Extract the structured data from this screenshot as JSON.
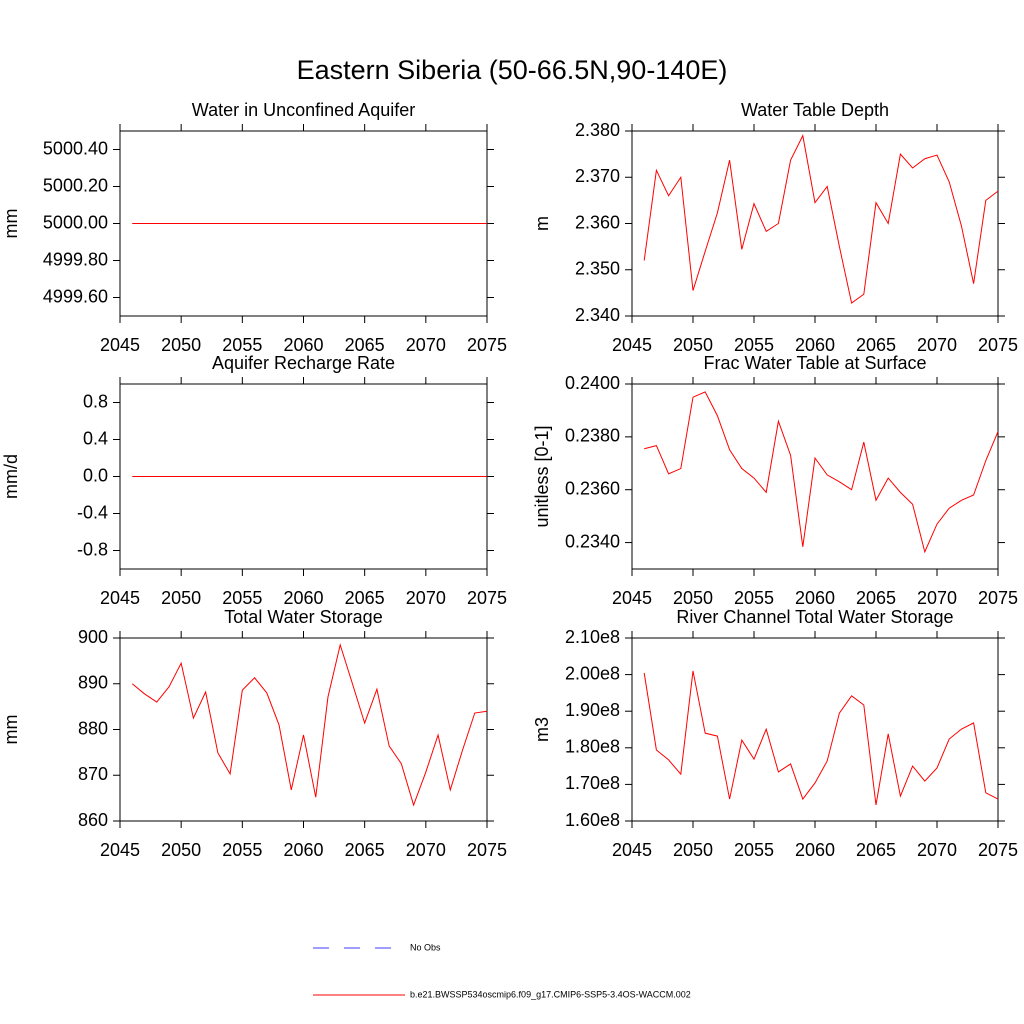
{
  "title": "Eastern Siberia (50-66.5N,90-140E)",
  "legend": [
    {
      "name": "No Obs",
      "color": "#3c3cff",
      "dash": true
    },
    {
      "name": "b.e21.BWSSP534oscmip6.f09_g17.CMIP6-SSP5-3.4OS-WACCM.002",
      "color": "#ff0000",
      "dash": false
    }
  ],
  "chart_data": [
    {
      "type": "line",
      "title": "Water in Unconfined Aquifer",
      "ylabel": "mm",
      "x": [
        2046,
        2047,
        2048,
        2049,
        2050,
        2051,
        2052,
        2053,
        2054,
        2055,
        2056,
        2057,
        2058,
        2059,
        2060,
        2061,
        2062,
        2063,
        2064,
        2065,
        2066,
        2067,
        2068,
        2069,
        2070,
        2071,
        2072,
        2073,
        2074,
        2075
      ],
      "series": [
        {
          "color": "#ff0000",
          "values": [
            5000,
            5000,
            5000,
            5000,
            5000,
            5000,
            5000,
            5000,
            5000,
            5000,
            5000,
            5000,
            5000,
            5000,
            5000,
            5000,
            5000,
            5000,
            5000,
            5000,
            5000,
            5000,
            5000,
            5000,
            5000,
            5000,
            5000,
            5000,
            5000,
            5000
          ]
        }
      ],
      "xlim": [
        2045,
        2075
      ],
      "xticks": [
        2045,
        2050,
        2055,
        2060,
        2065,
        2070,
        2075
      ],
      "ylim": [
        4999.5,
        5000.5
      ],
      "yticks": [
        {
          "value": 4999.6,
          "label": "4999.60"
        },
        {
          "value": 4999.8,
          "label": "4999.80"
        },
        {
          "value": 5000,
          "label": "5000.00"
        },
        {
          "value": 5000.2,
          "label": "5000.20"
        },
        {
          "value": 5000.4,
          "label": "5000.40"
        }
      ]
    },
    {
      "type": "line",
      "title": "Water Table Depth",
      "ylabel": "m",
      "x": [
        2046,
        2047,
        2048,
        2049,
        2050,
        2051,
        2052,
        2053,
        2054,
        2055,
        2056,
        2057,
        2058,
        2059,
        2060,
        2061,
        2062,
        2063,
        2064,
        2065,
        2066,
        2067,
        2068,
        2069,
        2070,
        2071,
        2072,
        2073,
        2074,
        2075
      ],
      "series": [
        {
          "color": "#ff0000",
          "values": [
            2.352,
            2.3715,
            2.366,
            2.37,
            2.3455,
            2.354,
            2.3623,
            2.3737,
            2.3544,
            2.3643,
            2.3583,
            2.36,
            2.3737,
            2.379,
            2.3645,
            2.368,
            2.355,
            2.3428,
            2.3447,
            2.3645,
            2.36,
            2.375,
            2.372,
            2.374,
            2.3748,
            2.369,
            2.3595,
            2.347,
            2.365,
            2.367
          ]
        }
      ],
      "xlim": [
        2045,
        2075
      ],
      "xticks": [
        2045,
        2050,
        2055,
        2060,
        2065,
        2070,
        2075
      ],
      "ylim": [
        2.34,
        2.38
      ],
      "yticks": [
        {
          "value": 2.34,
          "label": "2.340"
        },
        {
          "value": 2.35,
          "label": "2.350"
        },
        {
          "value": 2.36,
          "label": "2.360"
        },
        {
          "value": 2.37,
          "label": "2.370"
        },
        {
          "value": 2.38,
          "label": "2.380"
        }
      ]
    },
    {
      "type": "line",
      "title": "Aquifer Recharge Rate",
      "ylabel": "mm/d",
      "x": [
        2046,
        2047,
        2048,
        2049,
        2050,
        2051,
        2052,
        2053,
        2054,
        2055,
        2056,
        2057,
        2058,
        2059,
        2060,
        2061,
        2062,
        2063,
        2064,
        2065,
        2066,
        2067,
        2068,
        2069,
        2070,
        2071,
        2072,
        2073,
        2074,
        2075
      ],
      "series": [
        {
          "color": "#ff0000",
          "values": [
            0,
            0,
            0,
            0,
            0,
            0,
            0,
            0,
            0,
            0,
            0,
            0,
            0,
            0,
            0,
            0,
            0,
            0,
            0,
            0,
            0,
            0,
            0,
            0,
            0,
            0,
            0,
            0,
            0,
            0
          ]
        }
      ],
      "xlim": [
        2045,
        2075
      ],
      "xticks": [
        2045,
        2050,
        2055,
        2060,
        2065,
        2070,
        2075
      ],
      "ylim": [
        -1,
        1
      ],
      "yticks": [
        -0.8,
        -0.4,
        {
          "value": 0,
          "label": "0.0"
        },
        0.4,
        0.8
      ]
    },
    {
      "type": "line",
      "title": "Frac Water Table at Surface",
      "ylabel": "unitless [0-1]",
      "x": [
        2046,
        2047,
        2048,
        2049,
        2050,
        2051,
        2052,
        2053,
        2054,
        2055,
        2056,
        2057,
        2058,
        2059,
        2060,
        2061,
        2062,
        2063,
        2064,
        2065,
        2066,
        2067,
        2068,
        2069,
        2070,
        2071,
        2072,
        2073,
        2074,
        2075
      ],
      "series": [
        {
          "color": "#ff0000",
          "values": [
            0.23755,
            0.23767,
            0.2366,
            0.2368,
            0.2395,
            0.2397,
            0.2388,
            0.23751,
            0.2368,
            0.23644,
            0.2359,
            0.23859,
            0.2373,
            0.23384,
            0.2372,
            0.23656,
            0.2363,
            0.236,
            0.2378,
            0.2356,
            0.23644,
            0.2359,
            0.23545,
            0.23365,
            0.2347,
            0.2353,
            0.2356,
            0.2358,
            0.2371,
            0.2382
          ]
        }
      ],
      "xlim": [
        2045,
        2075
      ],
      "xticks": [
        2045,
        2050,
        2055,
        2060,
        2065,
        2070,
        2075
      ],
      "ylim": [
        0.233,
        0.24
      ],
      "yticks": [
        {
          "value": 0.234,
          "label": "0.2340"
        },
        {
          "value": 0.236,
          "label": "0.2360"
        },
        {
          "value": 0.238,
          "label": "0.2380"
        },
        {
          "value": 0.24,
          "label": "0.2400"
        }
      ]
    },
    {
      "type": "line",
      "title": "Total Water Storage",
      "ylabel": "mm",
      "x": [
        2046,
        2047,
        2048,
        2049,
        2050,
        2051,
        2052,
        2053,
        2054,
        2055,
        2056,
        2057,
        2058,
        2059,
        2060,
        2061,
        2062,
        2063,
        2064,
        2065,
        2066,
        2067,
        2068,
        2069,
        2070,
        2071,
        2072,
        2073,
        2074,
        2075
      ],
      "series": [
        {
          "color": "#ff0000",
          "values": [
            890,
            887.8,
            886,
            889.3,
            894.5,
            882.5,
            888.2,
            874.9,
            870.3,
            888.6,
            891.3,
            888,
            881,
            866.8,
            878.8,
            865.2,
            887.1,
            898.5,
            890,
            881.4,
            888.8,
            876.4,
            872.5,
            863.5,
            870.7,
            878.8,
            866.8,
            875.5,
            883.6,
            884
          ]
        }
      ],
      "xlim": [
        2045,
        2075
      ],
      "xticks": [
        2045,
        2050,
        2055,
        2060,
        2065,
        2070,
        2075
      ],
      "ylim": [
        860,
        900
      ],
      "yticks": [
        860,
        870,
        880,
        890,
        900
      ]
    },
    {
      "type": "line",
      "title": "River Channel Total Water Storage",
      "ylabel": "m3",
      "x": [
        2046,
        2047,
        2048,
        2049,
        2050,
        2051,
        2052,
        2053,
        2054,
        2055,
        2056,
        2057,
        2058,
        2059,
        2060,
        2061,
        2062,
        2063,
        2064,
        2065,
        2066,
        2067,
        2068,
        2069,
        2070,
        2071,
        2072,
        2073,
        2074,
        2075
      ],
      "series": [
        {
          "color": "#ff0000",
          "values": [
            200440000,
            179400000,
            176700000,
            172800000,
            201000000,
            184000000,
            183200000,
            166000000,
            182100000,
            176900000,
            185100000,
            173400000,
            175600000,
            166000000,
            170400000,
            176400000,
            189500000,
            194200000,
            191700000,
            164400000,
            183800000,
            166800000,
            175000000,
            170900000,
            174500000,
            182400000,
            185100000,
            186800000,
            167700000,
            166000000
          ]
        }
      ],
      "xlim": [
        2045,
        2075
      ],
      "xticks": [
        2045,
        2050,
        2055,
        2060,
        2065,
        2070,
        2075
      ],
      "ylim": [
        160000000,
        210000000
      ],
      "yticks": [
        {
          "value": 160000000,
          "label": "1.60e8"
        },
        {
          "value": 170000000,
          "label": "1.70e8"
        },
        {
          "value": 180000000,
          "label": "1.80e8"
        },
        {
          "value": 190000000,
          "label": "1.90e8"
        },
        {
          "value": 200000000,
          "label": "2.00e8"
        },
        {
          "value": 210000000,
          "label": "2.10e8"
        }
      ]
    }
  ]
}
